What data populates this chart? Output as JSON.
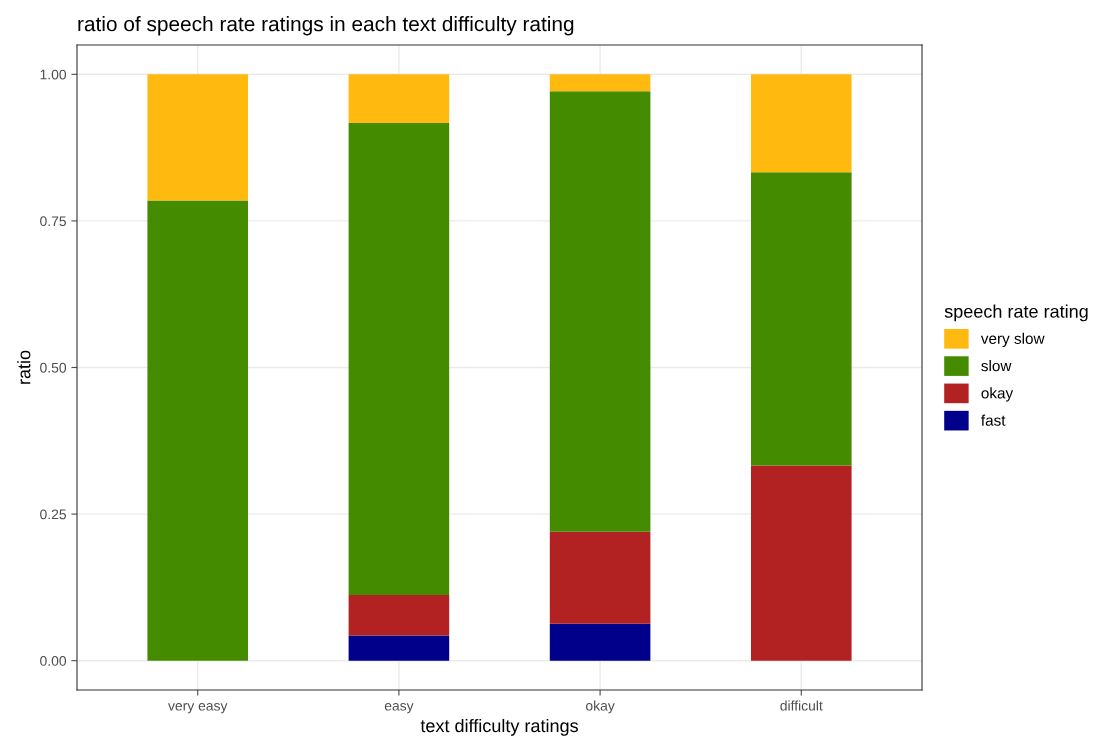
{
  "chart_data": {
    "type": "bar",
    "stacked": true,
    "title": "ratio of speech rate ratings in each text difficulty rating",
    "xlabel": "text difficulty ratings",
    "ylabel": "ratio",
    "legend_title": "speech rate rating",
    "legend": "right",
    "categories": [
      "very easy",
      "easy",
      "okay",
      "difficult"
    ],
    "series": [
      {
        "name": "fast",
        "color": "#00008b",
        "values": [
          0,
          0.043,
          0.063,
          0
        ]
      },
      {
        "name": "okay",
        "color": "#b22222",
        "values": [
          0,
          0.069,
          0.157,
          0.333
        ]
      },
      {
        "name": "slow",
        "color": "#458b00",
        "values": [
          0.785,
          0.805,
          0.751,
          0.5
        ]
      },
      {
        "name": "very slow",
        "color": "#ffb90f",
        "values": [
          0.215,
          0.083,
          0.029,
          0.167
        ]
      }
    ],
    "ylim": [
      -0.05,
      1.05
    ],
    "yticks": [
      {
        "value": 0,
        "label": "0.00"
      },
      {
        "value": 0.25,
        "label": "0.25"
      },
      {
        "value": 0.5,
        "label": "0.50"
      },
      {
        "value": 0.75,
        "label": "0.75"
      },
      {
        "value": 1,
        "label": "1.00"
      }
    ],
    "grid": true
  }
}
